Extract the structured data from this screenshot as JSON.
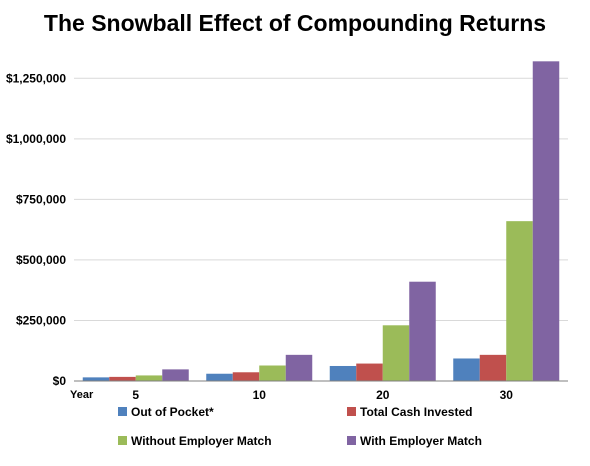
{
  "chart_data": {
    "type": "bar",
    "title": "The Snowball Effect of Compounding Returns",
    "xlabel": "Year",
    "ylabel": "",
    "categories": [
      "5",
      "10",
      "20",
      "30"
    ],
    "ylim": [
      0,
      1375000
    ],
    "yticks": [
      0,
      250000,
      500000,
      750000,
      1000000,
      1250000
    ],
    "ytick_labels": [
      "$0",
      "$250,000",
      "$500,000",
      "$750,000",
      "$1,000,000",
      "$1,250,000"
    ],
    "grid": true,
    "legend_position": "bottom",
    "series": [
      {
        "name": "Out of Pocket*",
        "color": "#4f81bd",
        "values": [
          15000,
          30000,
          62000,
          93000
        ]
      },
      {
        "name": "Total Cash Invested",
        "color": "#c0504d",
        "values": [
          17000,
          36000,
          72000,
          108000
        ]
      },
      {
        "name": "Without Employer Match",
        "color": "#9bbb59",
        "values": [
          23000,
          64000,
          230000,
          660000
        ]
      },
      {
        "name": "With Employer Match",
        "color": "#8064a2",
        "values": [
          48000,
          108000,
          410000,
          1320000
        ]
      }
    ]
  }
}
